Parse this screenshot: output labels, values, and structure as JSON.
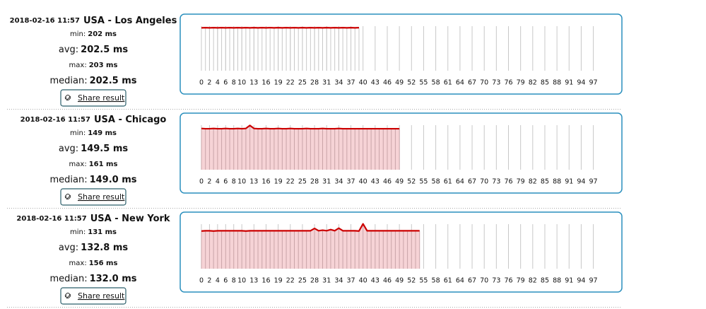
{
  "results": [
    {
      "timestamp": "2018-02-16 11:57",
      "location": "USA - Los Angeles",
      "stats": [
        {
          "label": "min:",
          "value": "202 ms"
        },
        {
          "label": "avg:",
          "value": "202.5 ms"
        },
        {
          "label": "max:",
          "value": "203 ms"
        },
        {
          "label": "median:",
          "value": "202.5 ms"
        }
      ],
      "share": "Share result"
    },
    {
      "timestamp": "2018-02-16 11:57",
      "location": "USA - Chicago",
      "stats": [
        {
          "label": "min:",
          "value": "149 ms"
        },
        {
          "label": "avg:",
          "value": "149.5 ms"
        },
        {
          "label": "max:",
          "value": "161 ms"
        },
        {
          "label": "median:",
          "value": "149.0 ms"
        }
      ],
      "share": "Share result"
    },
    {
      "timestamp": "2018-02-16 11:57",
      "location": "USA - New York",
      "stats": [
        {
          "label": "min:",
          "value": "131 ms"
        },
        {
          "label": "avg:",
          "value": "132.8 ms"
        },
        {
          "label": "max:",
          "value": "156 ms"
        },
        {
          "label": "median:",
          "value": "132.0 ms"
        }
      ],
      "share": "Share result"
    }
  ],
  "chart_data": [
    {
      "type": "line",
      "color": "#cc0000",
      "area": false,
      "xlim": [
        0,
        99
      ],
      "ylim": [
        0,
        210
      ],
      "xticks": [
        0,
        2,
        4,
        6,
        8,
        10,
        13,
        16,
        19,
        22,
        25,
        28,
        31,
        34,
        37,
        40,
        43,
        46,
        49,
        52,
        55,
        58,
        61,
        64,
        67,
        70,
        73,
        76,
        79,
        82,
        85,
        88,
        91,
        94,
        97
      ],
      "values": [
        202,
        203,
        202,
        203,
        202,
        203,
        202,
        203,
        202,
        203,
        202,
        203,
        202,
        203,
        202,
        203,
        202,
        203,
        202,
        203,
        202,
        203,
        202,
        203,
        202,
        203,
        202,
        203,
        202,
        203,
        202,
        203,
        202,
        203,
        202,
        203,
        202,
        203,
        202,
        203
      ]
    },
    {
      "type": "line",
      "color": "#cc0000",
      "area": true,
      "xlim": [
        0,
        99
      ],
      "ylim": [
        0,
        162
      ],
      "xticks": [
        0,
        2,
        4,
        6,
        8,
        10,
        13,
        16,
        19,
        22,
        25,
        28,
        31,
        34,
        37,
        40,
        43,
        46,
        49,
        52,
        55,
        58,
        61,
        64,
        67,
        70,
        73,
        76,
        79,
        82,
        85,
        88,
        91,
        94,
        97
      ],
      "values": [
        150,
        149,
        149,
        150,
        149,
        149,
        150,
        149,
        149,
        150,
        149,
        150,
        161,
        150,
        149,
        149,
        150,
        149,
        149,
        150,
        149,
        149,
        150,
        149,
        149,
        149,
        150,
        149,
        149,
        149,
        150,
        149,
        149,
        149,
        150,
        149,
        149,
        149,
        149,
        149,
        149,
        149,
        149,
        149,
        149,
        149,
        149,
        149,
        149,
        149
      ]
    },
    {
      "type": "line",
      "color": "#cc0000",
      "area": true,
      "xlim": [
        0,
        99
      ],
      "ylim": [
        0,
        155
      ],
      "xticks": [
        0,
        2,
        4,
        6,
        8,
        10,
        13,
        16,
        19,
        22,
        25,
        28,
        31,
        34,
        37,
        40,
        43,
        46,
        49,
        52,
        55,
        58,
        61,
        64,
        67,
        70,
        73,
        76,
        79,
        82,
        85,
        88,
        91,
        94,
        97
      ],
      "values": [
        131,
        132,
        132,
        131,
        132,
        132,
        132,
        132,
        132,
        132,
        132,
        131,
        132,
        132,
        132,
        132,
        132,
        132,
        132,
        132,
        132,
        132,
        132,
        132,
        132,
        132,
        132,
        132,
        140,
        132,
        134,
        132,
        136,
        132,
        141,
        132,
        132,
        132,
        132,
        131,
        156,
        132,
        132,
        132,
        132,
        132,
        132,
        132,
        132,
        132,
        132,
        132,
        132,
        132,
        132
      ]
    }
  ]
}
